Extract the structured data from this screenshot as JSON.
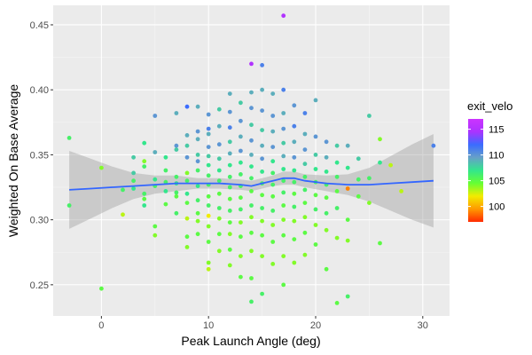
{
  "chart_data": {
    "type": "scatter",
    "title": "",
    "xlabel": "Peak Launch Angle (deg)",
    "ylabel": "Weighted On Base Average",
    "xlim": [
      -4.5,
      32.5
    ],
    "ylim": [
      0.226,
      0.465
    ],
    "x_ticks": [
      0,
      10,
      20,
      30
    ],
    "x_tick_labels": [
      "0",
      "10",
      "20",
      "30"
    ],
    "y_ticks": [
      0.25,
      0.3,
      0.35,
      0.4,
      0.45
    ],
    "y_tick_labels": [
      "0.25",
      "0.30",
      "0.35",
      "0.40",
      "0.45"
    ],
    "grid": true,
    "legend": {
      "title": "exit_velo",
      "placement": "right",
      "type": "colorbar",
      "range": [
        97,
        117
      ],
      "ticks": [
        100,
        105,
        110,
        115
      ],
      "tick_labels": [
        "100",
        "105",
        "110",
        "115"
      ],
      "colors": [
        "#ff2a00",
        "#ff9900",
        "#f2ec00",
        "#66ff33",
        "#33e68c",
        "#66a0c8",
        "#3b6cff",
        "#aa33ff",
        "#cc33ff"
      ]
    },
    "smooth": {
      "color": "#3366ff",
      "band_color": "#999999",
      "x": [
        -3,
        -1,
        1,
        3,
        5,
        7,
        9,
        11,
        13,
        14,
        15,
        16,
        17,
        18,
        19,
        21,
        23,
        25,
        27,
        29,
        31
      ],
      "y": [
        0.323,
        0.324,
        0.325,
        0.326,
        0.327,
        0.328,
        0.328,
        0.328,
        0.327,
        0.326,
        0.328,
        0.33,
        0.332,
        0.332,
        0.33,
        0.328,
        0.327,
        0.327,
        0.328,
        0.329,
        0.33
      ],
      "ymin": [
        0.293,
        0.301,
        0.309,
        0.316,
        0.32,
        0.322,
        0.324,
        0.324,
        0.323,
        0.322,
        0.324,
        0.326,
        0.327,
        0.327,
        0.325,
        0.322,
        0.319,
        0.314,
        0.307,
        0.3,
        0.294
      ],
      "ymax": [
        0.353,
        0.347,
        0.341,
        0.336,
        0.334,
        0.334,
        0.332,
        0.332,
        0.331,
        0.33,
        0.332,
        0.334,
        0.337,
        0.337,
        0.335,
        0.334,
        0.335,
        0.34,
        0.349,
        0.358,
        0.366
      ]
    },
    "points": [
      {
        "x": -3,
        "y": 0.363,
        "v": 106
      },
      {
        "x": -3,
        "y": 0.311,
        "v": 106
      },
      {
        "x": 0,
        "y": 0.34,
        "v": 104
      },
      {
        "x": 0,
        "y": 0.247,
        "v": 105
      },
      {
        "x": 2,
        "y": 0.304,
        "v": 103
      },
      {
        "x": 2,
        "y": 0.323,
        "v": 106
      },
      {
        "x": 3,
        "y": 0.348,
        "v": 108
      },
      {
        "x": 3,
        "y": 0.336,
        "v": 108
      },
      {
        "x": 3,
        "y": 0.33,
        "v": 106
      },
      {
        "x": 3,
        "y": 0.324,
        "v": 107
      },
      {
        "x": 4,
        "y": 0.359,
        "v": 107
      },
      {
        "x": 4,
        "y": 0.345,
        "v": 104
      },
      {
        "x": 4,
        "y": 0.341,
        "v": 106
      },
      {
        "x": 4,
        "y": 0.32,
        "v": 106
      },
      {
        "x": 4,
        "y": 0.316,
        "v": 105
      },
      {
        "x": 4,
        "y": 0.311,
        "v": 107
      },
      {
        "x": 5,
        "y": 0.38,
        "v": 110
      },
      {
        "x": 5,
        "y": 0.352,
        "v": 109
      },
      {
        "x": 5,
        "y": 0.331,
        "v": 107
      },
      {
        "x": 5,
        "y": 0.326,
        "v": 106
      },
      {
        "x": 5,
        "y": 0.295,
        "v": 105
      },
      {
        "x": 5,
        "y": 0.288,
        "v": 104
      },
      {
        "x": 6,
        "y": 0.348,
        "v": 107
      },
      {
        "x": 6,
        "y": 0.338,
        "v": 106
      },
      {
        "x": 6,
        "y": 0.329,
        "v": 106
      },
      {
        "x": 6,
        "y": 0.322,
        "v": 107
      },
      {
        "x": 6,
        "y": 0.312,
        "v": 105
      },
      {
        "x": 7,
        "y": 0.382,
        "v": 109
      },
      {
        "x": 7,
        "y": 0.357,
        "v": 110
      },
      {
        "x": 7,
        "y": 0.354,
        "v": 108
      },
      {
        "x": 7,
        "y": 0.333,
        "v": 106
      },
      {
        "x": 7,
        "y": 0.328,
        "v": 107
      },
      {
        "x": 7,
        "y": 0.321,
        "v": 106
      },
      {
        "x": 7,
        "y": 0.318,
        "v": 105
      },
      {
        "x": 7,
        "y": 0.305,
        "v": 106
      },
      {
        "x": 8,
        "y": 0.387,
        "v": 112
      },
      {
        "x": 8,
        "y": 0.365,
        "v": 109
      },
      {
        "x": 8,
        "y": 0.357,
        "v": 108
      },
      {
        "x": 8,
        "y": 0.348,
        "v": 110
      },
      {
        "x": 8,
        "y": 0.336,
        "v": 104
      },
      {
        "x": 8,
        "y": 0.33,
        "v": 106
      },
      {
        "x": 8,
        "y": 0.32,
        "v": 107
      },
      {
        "x": 8,
        "y": 0.313,
        "v": 105
      },
      {
        "x": 8,
        "y": 0.301,
        "v": 103
      },
      {
        "x": 8,
        "y": 0.287,
        "v": 105
      },
      {
        "x": 8,
        "y": 0.279,
        "v": 104
      },
      {
        "x": 9,
        "y": 0.387,
        "v": 109
      },
      {
        "x": 9,
        "y": 0.368,
        "v": 110
      },
      {
        "x": 9,
        "y": 0.362,
        "v": 109
      },
      {
        "x": 9,
        "y": 0.35,
        "v": 108
      },
      {
        "x": 9,
        "y": 0.345,
        "v": 110
      },
      {
        "x": 9,
        "y": 0.338,
        "v": 106
      },
      {
        "x": 9,
        "y": 0.326,
        "v": 107
      },
      {
        "x": 9,
        "y": 0.315,
        "v": 106
      },
      {
        "x": 9,
        "y": 0.305,
        "v": 105
      },
      {
        "x": 9,
        "y": 0.299,
        "v": 104
      },
      {
        "x": 9,
        "y": 0.289,
        "v": 105
      },
      {
        "x": 10,
        "y": 0.381,
        "v": 110
      },
      {
        "x": 10,
        "y": 0.37,
        "v": 111
      },
      {
        "x": 10,
        "y": 0.366,
        "v": 109
      },
      {
        "x": 10,
        "y": 0.356,
        "v": 110
      },
      {
        "x": 10,
        "y": 0.349,
        "v": 108
      },
      {
        "x": 10,
        "y": 0.342,
        "v": 107
      },
      {
        "x": 10,
        "y": 0.334,
        "v": 106
      },
      {
        "x": 10,
        "y": 0.327,
        "v": 106
      },
      {
        "x": 10,
        "y": 0.318,
        "v": 105
      },
      {
        "x": 10,
        "y": 0.311,
        "v": 106
      },
      {
        "x": 10,
        "y": 0.303,
        "v": 102
      },
      {
        "x": 10,
        "y": 0.295,
        "v": 104
      },
      {
        "x": 10,
        "y": 0.283,
        "v": 105
      },
      {
        "x": 10,
        "y": 0.267,
        "v": 104
      },
      {
        "x": 10,
        "y": 0.262,
        "v": 103
      },
      {
        "x": 11,
        "y": 0.385,
        "v": 108
      },
      {
        "x": 11,
        "y": 0.372,
        "v": 109
      },
      {
        "x": 11,
        "y": 0.358,
        "v": 110
      },
      {
        "x": 11,
        "y": 0.347,
        "v": 108
      },
      {
        "x": 11,
        "y": 0.338,
        "v": 107
      },
      {
        "x": 11,
        "y": 0.33,
        "v": 106
      },
      {
        "x": 11,
        "y": 0.32,
        "v": 105
      },
      {
        "x": 11,
        "y": 0.309,
        "v": 106
      },
      {
        "x": 11,
        "y": 0.301,
        "v": 104
      },
      {
        "x": 11,
        "y": 0.289,
        "v": 105
      },
      {
        "x": 11,
        "y": 0.276,
        "v": 104
      },
      {
        "x": 12,
        "y": 0.397,
        "v": 109
      },
      {
        "x": 12,
        "y": 0.383,
        "v": 110
      },
      {
        "x": 12,
        "y": 0.371,
        "v": 111
      },
      {
        "x": 12,
        "y": 0.36,
        "v": 108
      },
      {
        "x": 12,
        "y": 0.351,
        "v": 109
      },
      {
        "x": 12,
        "y": 0.342,
        "v": 107
      },
      {
        "x": 12,
        "y": 0.333,
        "v": 106
      },
      {
        "x": 12,
        "y": 0.325,
        "v": 106
      },
      {
        "x": 12,
        "y": 0.316,
        "v": 105
      },
      {
        "x": 12,
        "y": 0.307,
        "v": 106
      },
      {
        "x": 12,
        "y": 0.298,
        "v": 105
      },
      {
        "x": 12,
        "y": 0.289,
        "v": 104
      },
      {
        "x": 12,
        "y": 0.277,
        "v": 105
      },
      {
        "x": 12,
        "y": 0.265,
        "v": 104
      },
      {
        "x": 13,
        "y": 0.39,
        "v": 108
      },
      {
        "x": 13,
        "y": 0.376,
        "v": 110
      },
      {
        "x": 13,
        "y": 0.364,
        "v": 109
      },
      {
        "x": 13,
        "y": 0.353,
        "v": 110
      },
      {
        "x": 13,
        "y": 0.344,
        "v": 107
      },
      {
        "x": 13,
        "y": 0.335,
        "v": 106
      },
      {
        "x": 13,
        "y": 0.326,
        "v": 106
      },
      {
        "x": 13,
        "y": 0.317,
        "v": 105
      },
      {
        "x": 13,
        "y": 0.308,
        "v": 106
      },
      {
        "x": 13,
        "y": 0.298,
        "v": 104
      },
      {
        "x": 13,
        "y": 0.287,
        "v": 105
      },
      {
        "x": 13,
        "y": 0.272,
        "v": 104
      },
      {
        "x": 13,
        "y": 0.256,
        "v": 105
      },
      {
        "x": 14,
        "y": 0.42,
        "v": 115
      },
      {
        "x": 14,
        "y": 0.398,
        "v": 109
      },
      {
        "x": 14,
        "y": 0.386,
        "v": 110
      },
      {
        "x": 14,
        "y": 0.373,
        "v": 108
      },
      {
        "x": 14,
        "y": 0.361,
        "v": 110
      },
      {
        "x": 14,
        "y": 0.35,
        "v": 109
      },
      {
        "x": 14,
        "y": 0.341,
        "v": 107
      },
      {
        "x": 14,
        "y": 0.332,
        "v": 106
      },
      {
        "x": 14,
        "y": 0.322,
        "v": 105
      },
      {
        "x": 14,
        "y": 0.311,
        "v": 106
      },
      {
        "x": 14,
        "y": 0.302,
        "v": 104
      },
      {
        "x": 14,
        "y": 0.29,
        "v": 105
      },
      {
        "x": 14,
        "y": 0.276,
        "v": 104
      },
      {
        "x": 14,
        "y": 0.255,
        "v": 105
      },
      {
        "x": 14,
        "y": 0.237,
        "v": 106
      },
      {
        "x": 15,
        "y": 0.419,
        "v": 111
      },
      {
        "x": 15,
        "y": 0.4,
        "v": 109
      },
      {
        "x": 15,
        "y": 0.384,
        "v": 110
      },
      {
        "x": 15,
        "y": 0.369,
        "v": 108
      },
      {
        "x": 15,
        "y": 0.357,
        "v": 109
      },
      {
        "x": 15,
        "y": 0.347,
        "v": 110
      },
      {
        "x": 15,
        "y": 0.337,
        "v": 107
      },
      {
        "x": 15,
        "y": 0.328,
        "v": 106
      },
      {
        "x": 15,
        "y": 0.319,
        "v": 105
      },
      {
        "x": 15,
        "y": 0.309,
        "v": 106
      },
      {
        "x": 15,
        "y": 0.299,
        "v": 104
      },
      {
        "x": 15,
        "y": 0.288,
        "v": 105
      },
      {
        "x": 15,
        "y": 0.272,
        "v": 104
      },
      {
        "x": 15,
        "y": 0.243,
        "v": 106
      },
      {
        "x": 16,
        "y": 0.397,
        "v": 109
      },
      {
        "x": 16,
        "y": 0.38,
        "v": 110
      },
      {
        "x": 16,
        "y": 0.368,
        "v": 109
      },
      {
        "x": 16,
        "y": 0.356,
        "v": 110
      },
      {
        "x": 16,
        "y": 0.345,
        "v": 107
      },
      {
        "x": 16,
        "y": 0.336,
        "v": 106
      },
      {
        "x": 16,
        "y": 0.327,
        "v": 106
      },
      {
        "x": 16,
        "y": 0.318,
        "v": 105
      },
      {
        "x": 16,
        "y": 0.307,
        "v": 106
      },
      {
        "x": 16,
        "y": 0.296,
        "v": 104
      },
      {
        "x": 16,
        "y": 0.283,
        "v": 105
      },
      {
        "x": 16,
        "y": 0.266,
        "v": 104
      },
      {
        "x": 17,
        "y": 0.457,
        "v": 115
      },
      {
        "x": 17,
        "y": 0.4,
        "v": 111
      },
      {
        "x": 17,
        "y": 0.382,
        "v": 109
      },
      {
        "x": 17,
        "y": 0.37,
        "v": 110
      },
      {
        "x": 17,
        "y": 0.359,
        "v": 108
      },
      {
        "x": 17,
        "y": 0.349,
        "v": 109
      },
      {
        "x": 17,
        "y": 0.339,
        "v": 107
      },
      {
        "x": 17,
        "y": 0.33,
        "v": 106
      },
      {
        "x": 17,
        "y": 0.321,
        "v": 106
      },
      {
        "x": 17,
        "y": 0.311,
        "v": 105
      },
      {
        "x": 17,
        "y": 0.3,
        "v": 104
      },
      {
        "x": 17,
        "y": 0.288,
        "v": 105
      },
      {
        "x": 17,
        "y": 0.272,
        "v": 104
      },
      {
        "x": 17,
        "y": 0.25,
        "v": 105
      },
      {
        "x": 18,
        "y": 0.388,
        "v": 110
      },
      {
        "x": 18,
        "y": 0.372,
        "v": 111
      },
      {
        "x": 18,
        "y": 0.36,
        "v": 109
      },
      {
        "x": 18,
        "y": 0.348,
        "v": 110
      },
      {
        "x": 18,
        "y": 0.338,
        "v": 107
      },
      {
        "x": 18,
        "y": 0.329,
        "v": 106
      },
      {
        "x": 18,
        "y": 0.32,
        "v": 105
      },
      {
        "x": 18,
        "y": 0.31,
        "v": 106
      },
      {
        "x": 18,
        "y": 0.299,
        "v": 104
      },
      {
        "x": 18,
        "y": 0.285,
        "v": 105
      },
      {
        "x": 18,
        "y": 0.267,
        "v": 104
      },
      {
        "x": 19,
        "y": 0.382,
        "v": 111
      },
      {
        "x": 19,
        "y": 0.366,
        "v": 109
      },
      {
        "x": 19,
        "y": 0.354,
        "v": 110
      },
      {
        "x": 19,
        "y": 0.343,
        "v": 108
      },
      {
        "x": 19,
        "y": 0.333,
        "v": 106
      },
      {
        "x": 19,
        "y": 0.323,
        "v": 106
      },
      {
        "x": 19,
        "y": 0.313,
        "v": 105
      },
      {
        "x": 19,
        "y": 0.302,
        "v": 104
      },
      {
        "x": 19,
        "y": 0.29,
        "v": 105
      },
      {
        "x": 19,
        "y": 0.273,
        "v": 104
      },
      {
        "x": 20,
        "y": 0.392,
        "v": 109
      },
      {
        "x": 20,
        "y": 0.364,
        "v": 110
      },
      {
        "x": 20,
        "y": 0.35,
        "v": 108
      },
      {
        "x": 20,
        "y": 0.339,
        "v": 107
      },
      {
        "x": 20,
        "y": 0.329,
        "v": 106
      },
      {
        "x": 20,
        "y": 0.319,
        "v": 105
      },
      {
        "x": 20,
        "y": 0.308,
        "v": 106
      },
      {
        "x": 20,
        "y": 0.296,
        "v": 104
      },
      {
        "x": 20,
        "y": 0.281,
        "v": 105
      },
      {
        "x": 21,
        "y": 0.36,
        "v": 110
      },
      {
        "x": 21,
        "y": 0.348,
        "v": 109
      },
      {
        "x": 21,
        "y": 0.337,
        "v": 107
      },
      {
        "x": 21,
        "y": 0.327,
        "v": 106
      },
      {
        "x": 21,
        "y": 0.317,
        "v": 105
      },
      {
        "x": 21,
        "y": 0.305,
        "v": 106
      },
      {
        "x": 21,
        "y": 0.292,
        "v": 104
      },
      {
        "x": 21,
        "y": 0.262,
        "v": 105
      },
      {
        "x": 22,
        "y": 0.357,
        "v": 108
      },
      {
        "x": 22,
        "y": 0.344,
        "v": 107
      },
      {
        "x": 22,
        "y": 0.333,
        "v": 106
      },
      {
        "x": 22,
        "y": 0.322,
        "v": 105
      },
      {
        "x": 22,
        "y": 0.309,
        "v": 106
      },
      {
        "x": 22,
        "y": 0.286,
        "v": 104
      },
      {
        "x": 22,
        "y": 0.236,
        "v": 105
      },
      {
        "x": 23,
        "y": 0.357,
        "v": 109
      },
      {
        "x": 23,
        "y": 0.34,
        "v": 107
      },
      {
        "x": 23,
        "y": 0.324,
        "v": 99
      },
      {
        "x": 23,
        "y": 0.3,
        "v": 105
      },
      {
        "x": 23,
        "y": 0.284,
        "v": 104
      },
      {
        "x": 23,
        "y": 0.241,
        "v": 106
      },
      {
        "x": 24,
        "y": 0.347,
        "v": 108
      },
      {
        "x": 24,
        "y": 0.331,
        "v": 106
      },
      {
        "x": 24,
        "y": 0.318,
        "v": 105
      },
      {
        "x": 25,
        "y": 0.38,
        "v": 108
      },
      {
        "x": 25,
        "y": 0.332,
        "v": 106
      },
      {
        "x": 25,
        "y": 0.313,
        "v": 104
      },
      {
        "x": 26,
        "y": 0.362,
        "v": 104
      },
      {
        "x": 26,
        "y": 0.344,
        "v": 107
      },
      {
        "x": 26,
        "y": 0.282,
        "v": 105
      },
      {
        "x": 27,
        "y": 0.342,
        "v": 103
      },
      {
        "x": 28,
        "y": 0.322,
        "v": 103
      },
      {
        "x": 31,
        "y": 0.357,
        "v": 111
      }
    ]
  }
}
